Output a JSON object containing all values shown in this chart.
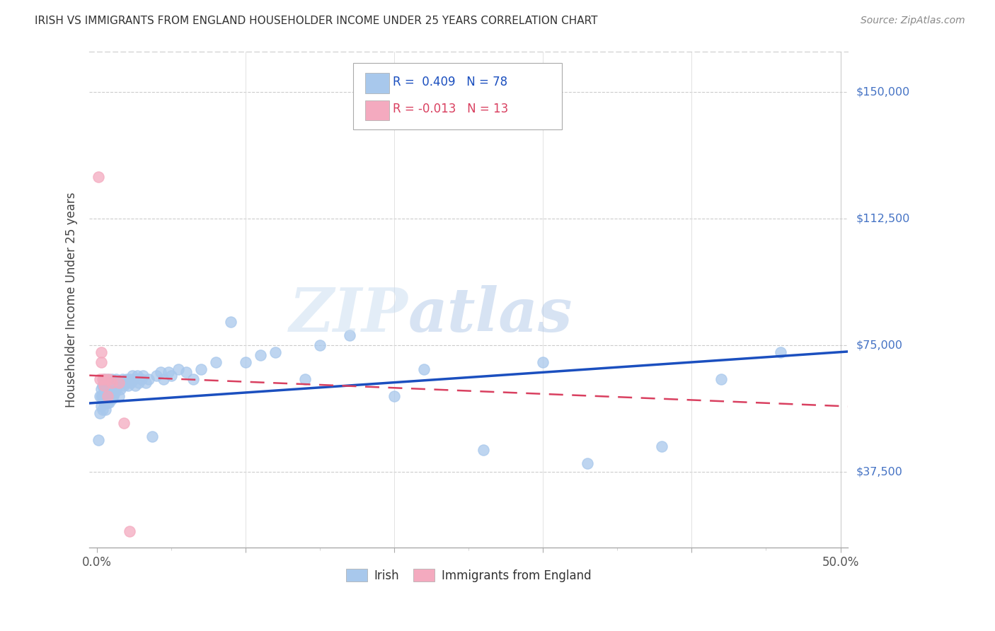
{
  "title": "IRISH VS IMMIGRANTS FROM ENGLAND HOUSEHOLDER INCOME UNDER 25 YEARS CORRELATION CHART",
  "source": "Source: ZipAtlas.com",
  "ylabel": "Householder Income Under 25 years",
  "legend_irish": "Irish",
  "legend_england": "Immigrants from England",
  "r_irish": 0.409,
  "n_irish": 78,
  "r_england": -0.013,
  "n_england": 13,
  "y_ticks": [
    37500,
    75000,
    112500,
    150000
  ],
  "y_tick_labels": [
    "$37,500",
    "$75,000",
    "$112,500",
    "$150,000"
  ],
  "irish_color": "#A8C8EC",
  "england_color": "#F4AABF",
  "irish_line_color": "#1B4FBF",
  "england_line_color": "#D94060",
  "irish_x": [
    0.001,
    0.002,
    0.002,
    0.003,
    0.003,
    0.003,
    0.004,
    0.004,
    0.004,
    0.005,
    0.005,
    0.005,
    0.006,
    0.006,
    0.006,
    0.007,
    0.007,
    0.007,
    0.008,
    0.008,
    0.008,
    0.009,
    0.009,
    0.01,
    0.01,
    0.01,
    0.011,
    0.011,
    0.012,
    0.012,
    0.013,
    0.013,
    0.014,
    0.015,
    0.015,
    0.016,
    0.017,
    0.018,
    0.019,
    0.02,
    0.021,
    0.022,
    0.023,
    0.024,
    0.025,
    0.026,
    0.027,
    0.028,
    0.03,
    0.031,
    0.033,
    0.035,
    0.037,
    0.04,
    0.043,
    0.045,
    0.048,
    0.05,
    0.055,
    0.06,
    0.065,
    0.07,
    0.08,
    0.09,
    0.1,
    0.11,
    0.12,
    0.14,
    0.15,
    0.17,
    0.2,
    0.22,
    0.26,
    0.3,
    0.33,
    0.38,
    0.42,
    0.46
  ],
  "irish_y": [
    47000,
    55000,
    60000,
    57000,
    60000,
    62000,
    56000,
    60000,
    63000,
    58000,
    62000,
    65000,
    56000,
    60000,
    62000,
    58000,
    62000,
    65000,
    58000,
    62000,
    64000,
    60000,
    63000,
    59000,
    62000,
    65000,
    60000,
    63000,
    61000,
    64000,
    62000,
    65000,
    63000,
    60000,
    64000,
    62000,
    65000,
    63000,
    64000,
    65000,
    63000,
    65000,
    64000,
    66000,
    65000,
    63000,
    66000,
    64000,
    65000,
    66000,
    64000,
    65000,
    48000,
    66000,
    67000,
    65000,
    67000,
    66000,
    68000,
    67000,
    65000,
    68000,
    70000,
    82000,
    70000,
    72000,
    73000,
    65000,
    75000,
    78000,
    60000,
    68000,
    44000,
    70000,
    40000,
    45000,
    65000,
    73000
  ],
  "england_x": [
    0.001,
    0.002,
    0.003,
    0.003,
    0.004,
    0.005,
    0.006,
    0.007,
    0.008,
    0.01,
    0.015,
    0.018,
    0.022
  ],
  "england_y": [
    125000,
    65000,
    70000,
    73000,
    65000,
    63000,
    65000,
    60000,
    65000,
    64000,
    64000,
    52000,
    20000
  ]
}
